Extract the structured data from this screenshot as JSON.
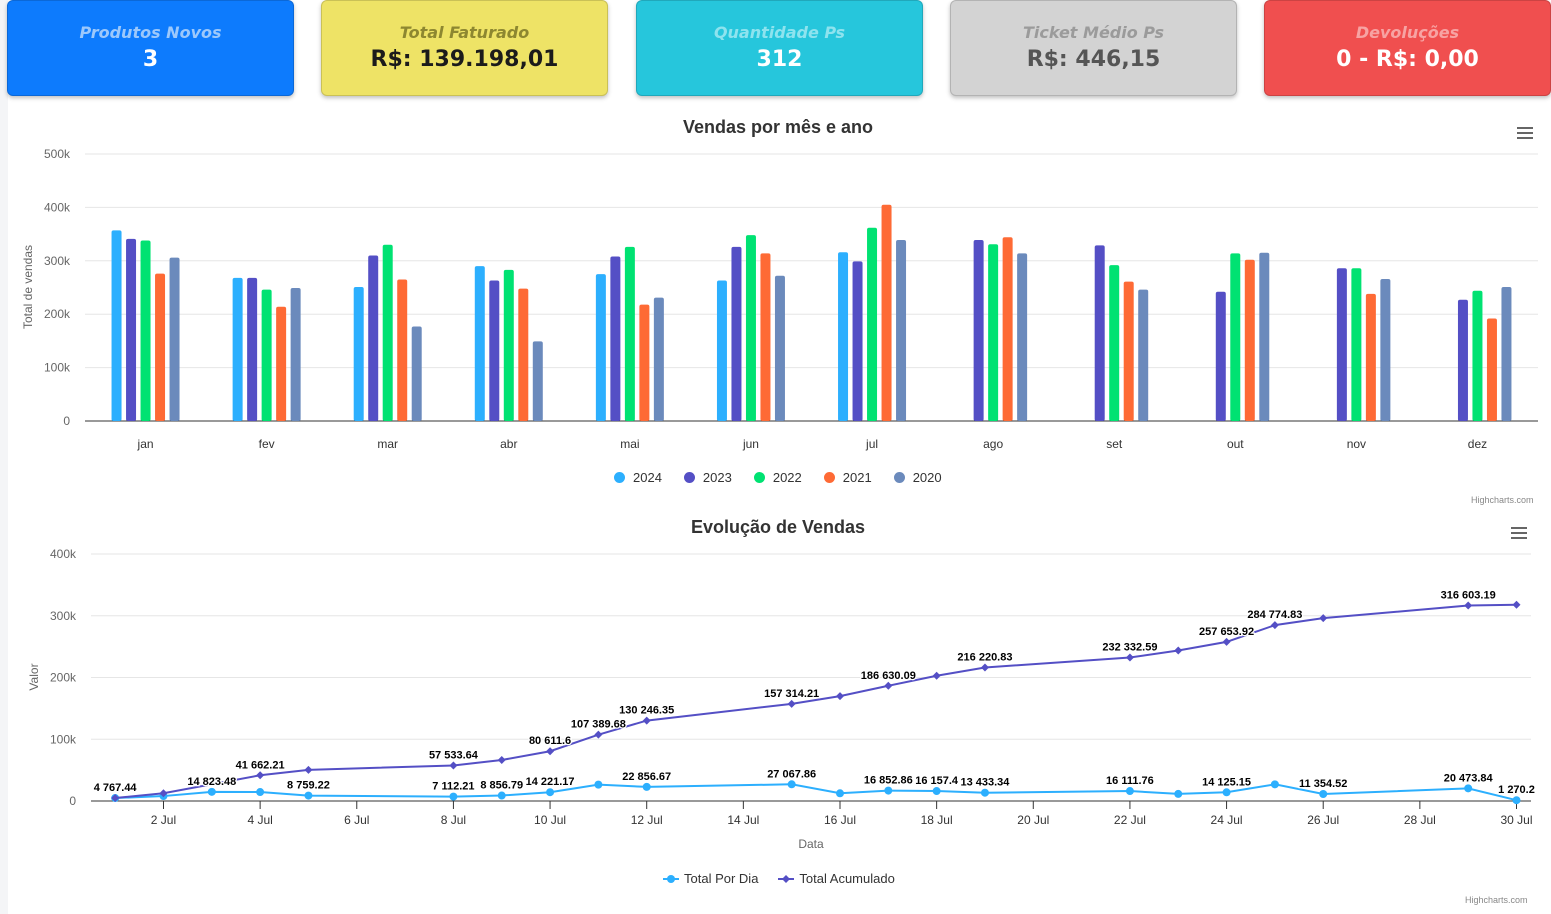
{
  "cards": [
    {
      "title": "Produtos Novos",
      "value": "3",
      "bg": "#0d7bfd",
      "title_color": "#9cc8fb",
      "value_color": "#ffffff"
    },
    {
      "title": "Total Faturado",
      "value": "R$: 139.198,01",
      "bg": "#eee366",
      "title_color": "#8d8730",
      "value_color": "#1b1b1b"
    },
    {
      "title": "Quantidade Ps",
      "value": "312",
      "bg": "#26c6dc",
      "title_color": "#8ee3ee",
      "value_color": "#ffffff"
    },
    {
      "title": "Ticket Médio Ps",
      "value": "R$: 446,15",
      "bg": "#d3d3d3",
      "title_color": "#9b9b9b",
      "value_color": "#555555"
    },
    {
      "title": "Devoluções",
      "value": "0 - R$: 0,00",
      "bg": "#f04f4f",
      "title_color": "#f7a3a3",
      "value_color": "#ffffff"
    }
  ],
  "chart1": {
    "credit": "Highcharts.com",
    "chart_data": {
      "type": "bar",
      "title": "Vendas por mês e ano",
      "ylabel": "Total de vendas",
      "xlabel": "",
      "ylim": [
        0,
        500000
      ],
      "yticks": [
        "0",
        "100k",
        "200k",
        "300k",
        "400k",
        "500k"
      ],
      "categories": [
        "jan",
        "fev",
        "mar",
        "abr",
        "mai",
        "jun",
        "jul",
        "ago",
        "set",
        "out",
        "nov",
        "dez"
      ],
      "legend_position": "bottom-center",
      "series": [
        {
          "name": "2024",
          "color": "#2caffe",
          "values": [
            357000,
            268000,
            251000,
            290000,
            275000,
            263000,
            316000,
            null,
            null,
            null,
            null,
            null
          ]
        },
        {
          "name": "2023",
          "color": "#544fc5",
          "values": [
            341000,
            268000,
            310000,
            263000,
            308000,
            326000,
            299000,
            339000,
            329000,
            242000,
            286000,
            227000
          ]
        },
        {
          "name": "2022",
          "color": "#00e272",
          "values": [
            338000,
            246000,
            330000,
            283000,
            326000,
            348000,
            362000,
            331000,
            292000,
            314000,
            286000,
            244000
          ]
        },
        {
          "name": "2021",
          "color": "#fe6a35",
          "values": [
            276000,
            214000,
            265000,
            248000,
            218000,
            314000,
            405000,
            344000,
            261000,
            302000,
            238000,
            192000
          ]
        },
        {
          "name": "2020",
          "color": "#6b8abc",
          "values": [
            306000,
            249000,
            177000,
            149000,
            231000,
            272000,
            339000,
            314000,
            246000,
            315000,
            266000,
            251000
          ]
        }
      ]
    }
  },
  "chart2": {
    "credit": "Highcharts.com",
    "chart_data": {
      "type": "line",
      "title": "Evolução de Vendas",
      "ylabel": "Valor",
      "xlabel": "Data",
      "ylim": [
        0,
        400000
      ],
      "yticks": [
        "0",
        "100k",
        "200k",
        "300k",
        "400k"
      ],
      "xlim": [
        0.5,
        30.3
      ],
      "xticks": [
        {
          "day": 2,
          "label": "2 Jul"
        },
        {
          "day": 4,
          "label": "4 Jul"
        },
        {
          "day": 6,
          "label": "6 Jul"
        },
        {
          "day": 8,
          "label": "8 Jul"
        },
        {
          "day": 10,
          "label": "10 Jul"
        },
        {
          "day": 12,
          "label": "12 Jul"
        },
        {
          "day": 14,
          "label": "14 Jul"
        },
        {
          "day": 16,
          "label": "16 Jul"
        },
        {
          "day": 18,
          "label": "18 Jul"
        },
        {
          "day": 20,
          "label": "20 Jul"
        },
        {
          "day": 22,
          "label": "22 Jul"
        },
        {
          "day": 24,
          "label": "24 Jul"
        },
        {
          "day": 26,
          "label": "26 Jul"
        },
        {
          "day": 28,
          "label": "28 Jul"
        },
        {
          "day": 30,
          "label": "30 Jul"
        }
      ],
      "legend_position": "bottom-center",
      "series": [
        {
          "name": "Total Por Dia",
          "color": "#2caffe",
          "marker": "circle",
          "points": [
            {
              "x": 1,
              "y": 4767.44,
              "label": "4 767.44"
            },
            {
              "x": 2,
              "y": 8000,
              "label": ""
            },
            {
              "x": 3,
              "y": 14823.48,
              "label": "14 823.48"
            },
            {
              "x": 4,
              "y": 14500,
              "label": ""
            },
            {
              "x": 5,
              "y": 8759.22,
              "label": "8 759.22"
            },
            {
              "x": 8,
              "y": 7112.21,
              "label": "7 112.21"
            },
            {
              "x": 9,
              "y": 8856.79,
              "label": "8 856.79"
            },
            {
              "x": 10,
              "y": 14221.17,
              "label": "14 221.17"
            },
            {
              "x": 11,
              "y": 26500,
              "label": ""
            },
            {
              "x": 12,
              "y": 22856.67,
              "label": "22 856.67"
            },
            {
              "x": 15,
              "y": 27067.86,
              "label": "27 067.86"
            },
            {
              "x": 16,
              "y": 12500,
              "label": ""
            },
            {
              "x": 17,
              "y": 16852.86,
              "label": "16 852.86"
            },
            {
              "x": 18,
              "y": 16157.4,
              "label": "16 157.4"
            },
            {
              "x": 19,
              "y": 13433.34,
              "label": "13 433.34"
            },
            {
              "x": 22,
              "y": 16111.76,
              "label": "16 111.76"
            },
            {
              "x": 23,
              "y": 11500,
              "label": ""
            },
            {
              "x": 24,
              "y": 14125.15,
              "label": "14 125.15"
            },
            {
              "x": 25,
              "y": 27000,
              "label": ""
            },
            {
              "x": 26,
              "y": 11354.52,
              "label": "11 354.52"
            },
            {
              "x": 29,
              "y": 20473.84,
              "label": "20 473.84"
            },
            {
              "x": 30,
              "y": 1270.2,
              "label": "1 270.2"
            }
          ]
        },
        {
          "name": "Total Acumulado",
          "color": "#544fc5",
          "marker": "diamond",
          "points": [
            {
              "x": 1,
              "y": 4767.44,
              "label": ""
            },
            {
              "x": 2,
              "y": 12500,
              "label": ""
            },
            {
              "x": 4,
              "y": 41662.21,
              "label": "41 662.21"
            },
            {
              "x": 5,
              "y": 50400,
              "label": ""
            },
            {
              "x": 8,
              "y": 57533.64,
              "label": "57 533.64"
            },
            {
              "x": 9,
              "y": 66400,
              "label": ""
            },
            {
              "x": 10,
              "y": 80611.6,
              "label": "80 611.6"
            },
            {
              "x": 11,
              "y": 107389.68,
              "label": "107 389.68"
            },
            {
              "x": 12,
              "y": 130246.35,
              "label": "130 246.35"
            },
            {
              "x": 15,
              "y": 157314.21,
              "label": "157 314.21"
            },
            {
              "x": 16,
              "y": 169800,
              "label": ""
            },
            {
              "x": 17,
              "y": 186630.09,
              "label": "186 630.09"
            },
            {
              "x": 18,
              "y": 202800,
              "label": ""
            },
            {
              "x": 19,
              "y": 216220.83,
              "label": "216 220.83"
            },
            {
              "x": 22,
              "y": 232332.59,
              "label": "232 332.59"
            },
            {
              "x": 23,
              "y": 243800,
              "label": ""
            },
            {
              "x": 24,
              "y": 257653.92,
              "label": "257 653.92"
            },
            {
              "x": 25,
              "y": 284774.83,
              "label": "284 774.83"
            },
            {
              "x": 26,
              "y": 296100,
              "label": ""
            },
            {
              "x": 29,
              "y": 316603.19,
              "label": "316 603.19"
            },
            {
              "x": 30,
              "y": 317900,
              "label": ""
            }
          ]
        }
      ]
    }
  }
}
